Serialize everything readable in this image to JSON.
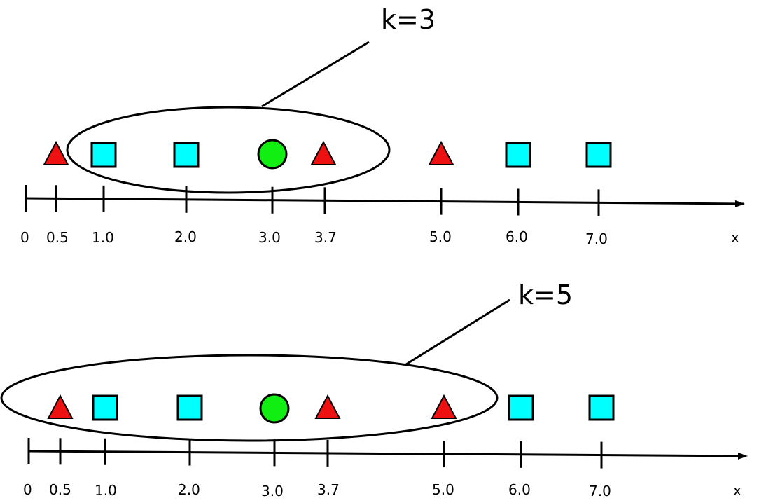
{
  "panels": [
    {
      "k_label": "k=3",
      "axis_name": "x",
      "ticks": [
        "0",
        "0.5",
        "1.0",
        "2.0",
        "3.0",
        "3.7",
        "5.0",
        "6.0",
        "7.0"
      ],
      "points": [
        {
          "x": 0.5,
          "shape": "triangle",
          "class": "red-triangle"
        },
        {
          "x": 1.0,
          "shape": "square",
          "class": "cyan-square"
        },
        {
          "x": 2.0,
          "shape": "square",
          "class": "cyan-square"
        },
        {
          "x": 3.0,
          "shape": "circle",
          "class": "query-point"
        },
        {
          "x": 3.7,
          "shape": "triangle",
          "class": "red-triangle"
        },
        {
          "x": 5.0,
          "shape": "triangle",
          "class": "red-triangle"
        },
        {
          "x": 6.0,
          "shape": "square",
          "class": "cyan-square"
        },
        {
          "x": 7.0,
          "shape": "square",
          "class": "cyan-square"
        }
      ]
    },
    {
      "k_label": "k=5",
      "axis_name": "x",
      "ticks": [
        "0",
        "0.5",
        "1.0",
        "2.0",
        "3.0",
        "3.7",
        "5.0",
        "6.0",
        "7.0"
      ],
      "points": [
        {
          "x": 0.5,
          "shape": "triangle",
          "class": "red-triangle"
        },
        {
          "x": 1.0,
          "shape": "square",
          "class": "cyan-square"
        },
        {
          "x": 2.0,
          "shape": "square",
          "class": "cyan-square"
        },
        {
          "x": 3.0,
          "shape": "circle",
          "class": "query-point"
        },
        {
          "x": 3.7,
          "shape": "triangle",
          "class": "red-triangle"
        },
        {
          "x": 5.0,
          "shape": "triangle",
          "class": "red-triangle"
        },
        {
          "x": 6.0,
          "shape": "square",
          "class": "cyan-square"
        },
        {
          "x": 7.0,
          "shape": "square",
          "class": "cyan-square"
        }
      ]
    }
  ],
  "colors": {
    "triangle": "#ee1111",
    "square": "#00ffff",
    "circle": "#11ee11",
    "stroke": "#000000"
  }
}
